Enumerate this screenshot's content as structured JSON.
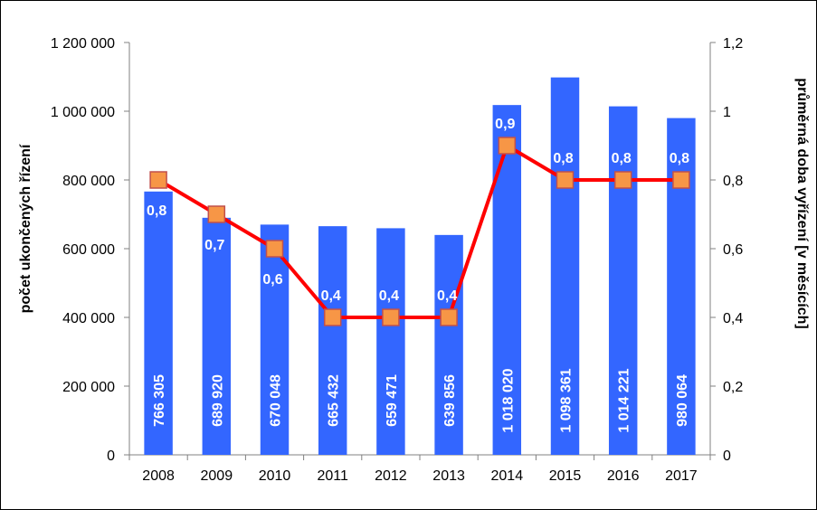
{
  "chart_data": {
    "type": "bar",
    "categories": [
      "2008",
      "2009",
      "2010",
      "2011",
      "2012",
      "2013",
      "2014",
      "2015",
      "2016",
      "2017"
    ],
    "series": [
      {
        "type": "bar",
        "axis": "left",
        "color": "#3366FF",
        "values": [
          766305,
          689920,
          670048,
          665432,
          659471,
          639856,
          1018020,
          1098361,
          1014221,
          980064
        ],
        "data_labels": [
          "766 305",
          "689 920",
          "670 048",
          "665 432",
          "659 471",
          "639 856",
          "1 018 020",
          "1 098 361",
          "1 014 221",
          "980 064"
        ]
      },
      {
        "type": "line",
        "axis": "right",
        "line_color": "#FF0000",
        "marker_color": "#F79646",
        "values": [
          0.8,
          0.7,
          0.6,
          0.4,
          0.4,
          0.4,
          0.9,
          0.8,
          0.8,
          0.8
        ],
        "data_labels": [
          "0,8",
          "0,7",
          "0,6",
          "0,4",
          "0,4",
          "0,4",
          "0,9",
          "0,8",
          "0,8",
          "0,8"
        ]
      }
    ],
    "ylabel": "počet ukončených řízení",
    "y2label": "průměrná doba vyřízení  [v měsících]",
    "ylim": [
      0,
      1200000
    ],
    "y2lim": [
      0,
      1.2
    ],
    "yticks": [
      "0",
      "200 000",
      "400 000",
      "600 000",
      "800 000",
      "1 000 000",
      "1 200 000"
    ],
    "y2ticks": [
      "0",
      "0,2",
      "0,4",
      "0,6",
      "0,8",
      "1",
      "1,2"
    ],
    "grid": false,
    "legend": "none"
  }
}
